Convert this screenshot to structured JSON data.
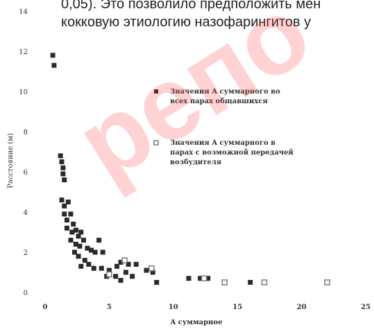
{
  "document": {
    "text_line_1": "0,05). Это позволило предположить мен",
    "text_line_2": "кокковую этиологию назофарингитов у"
  },
  "watermark": {
    "text": "репо"
  },
  "chart_data": {
    "type": "scatter",
    "title": "",
    "xlabel": "A суммарное",
    "ylabel": "Расстояние (м)",
    "xlim": [
      0,
      25
    ],
    "ylim": [
      0,
      14
    ],
    "x_ticks": [
      "0",
      "5",
      "10",
      "15",
      "20",
      "25"
    ],
    "y_ticks": [
      "0",
      "2",
      "4",
      "6",
      "8",
      "10",
      "12",
      "14"
    ],
    "legend_position": "right",
    "series": [
      {
        "name": "Значения A суммарного во всех парах общавшихся",
        "marker": "filled-square",
        "color": "#2a2a2a",
        "points": [
          [
            0.6,
            11.8
          ],
          [
            0.7,
            11.3
          ],
          [
            1.2,
            6.8
          ],
          [
            1.3,
            6.5
          ],
          [
            1.4,
            6.2
          ],
          [
            1.4,
            5.9
          ],
          [
            1.5,
            5.6
          ],
          [
            1.3,
            4.6
          ],
          [
            1.5,
            4.3
          ],
          [
            1.8,
            4.5
          ],
          [
            1.5,
            3.9
          ],
          [
            1.7,
            3.6
          ],
          [
            2.0,
            3.9
          ],
          [
            2.2,
            3.4
          ],
          [
            1.7,
            3.2
          ],
          [
            2.1,
            3.0
          ],
          [
            2.4,
            3.1
          ],
          [
            2.6,
            2.8
          ],
          [
            2.8,
            3.0
          ],
          [
            2.0,
            2.6
          ],
          [
            2.4,
            2.4
          ],
          [
            2.7,
            2.3
          ],
          [
            3.0,
            2.6
          ],
          [
            3.3,
            2.2
          ],
          [
            3.6,
            2.1
          ],
          [
            3.9,
            2.0
          ],
          [
            4.2,
            2.6
          ],
          [
            4.5,
            2.0
          ],
          [
            2.3,
            2.0
          ],
          [
            2.6,
            1.8
          ],
          [
            3.1,
            1.6
          ],
          [
            2.8,
            1.3
          ],
          [
            3.4,
            1.4
          ],
          [
            3.8,
            1.2
          ],
          [
            4.4,
            1.2
          ],
          [
            5.0,
            1.1
          ],
          [
            5.6,
            1.3
          ],
          [
            5.9,
            1.5
          ],
          [
            6.5,
            1.4
          ],
          [
            7.1,
            1.4
          ],
          [
            7.9,
            1.1
          ],
          [
            8.4,
            1.0
          ],
          [
            4.8,
            0.8
          ],
          [
            5.5,
            0.8
          ],
          [
            5.9,
            0.6
          ],
          [
            6.3,
            1.0
          ],
          [
            6.8,
            0.8
          ],
          [
            8.7,
            0.5
          ],
          [
            11.2,
            0.7
          ],
          [
            12.1,
            0.7
          ],
          [
            12.7,
            0.7
          ],
          [
            16.0,
            0.5
          ]
        ]
      },
      {
        "name": "Значения A суммарного в парах с возможной передачей возбудителя",
        "marker": "hollow-square",
        "color": "#7a7a7a",
        "points": [
          [
            5.0,
            0.9
          ],
          [
            6.2,
            1.6
          ],
          [
            8.3,
            1.2
          ],
          [
            12.4,
            0.7
          ],
          [
            14.0,
            0.5
          ],
          [
            17.1,
            0.5
          ],
          [
            22.0,
            0.5
          ]
        ]
      }
    ]
  }
}
